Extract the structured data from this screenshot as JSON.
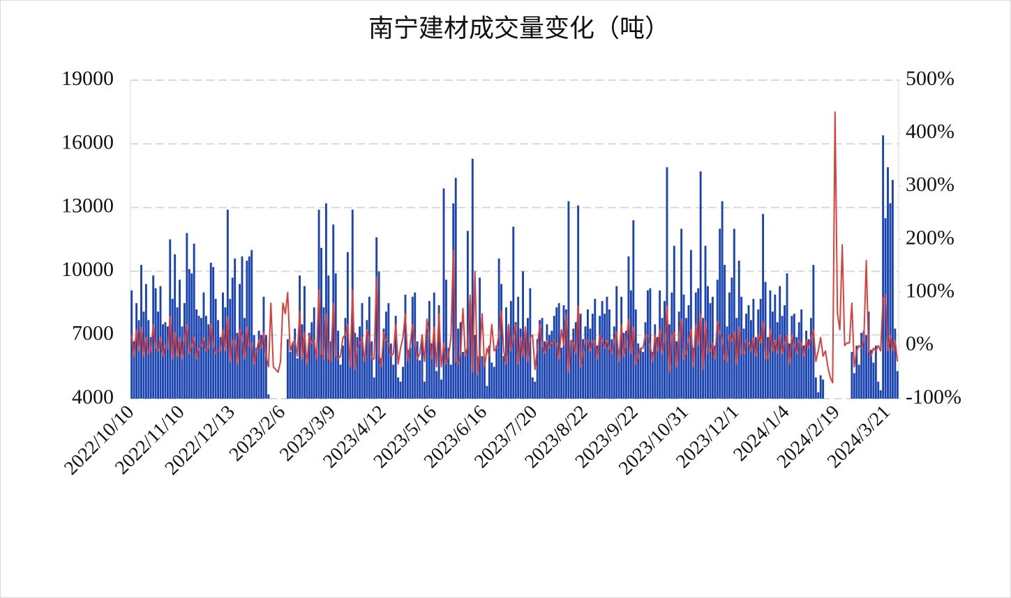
{
  "chart_data": {
    "type": "bar-line",
    "title": "南宁建材成交量变化（吨）",
    "categories": [
      "2022/10/10",
      null,
      null,
      null,
      null,
      null,
      null,
      null,
      null,
      null,
      null,
      null,
      null,
      null,
      null,
      null,
      null,
      null,
      null,
      null,
      null,
      "2022/11/10",
      null,
      null,
      null,
      null,
      null,
      null,
      null,
      null,
      null,
      null,
      null,
      null,
      null,
      null,
      null,
      null,
      null,
      null,
      null,
      null,
      "2022/12/13",
      null,
      null,
      null,
      null,
      null,
      null,
      null,
      null,
      null,
      null,
      null,
      null,
      null,
      null,
      null,
      null,
      null,
      null,
      null,
      null,
      "2023/2/6",
      null,
      null,
      null,
      null,
      null,
      null,
      null,
      null,
      null,
      null,
      null,
      null,
      null,
      null,
      null,
      null,
      null,
      null,
      null,
      null,
      "2023/3/9",
      null,
      null,
      null,
      null,
      null,
      null,
      null,
      null,
      null,
      null,
      null,
      null,
      null,
      null,
      null,
      null,
      null,
      null,
      null,
      null,
      "2023/4/12",
      null,
      null,
      null,
      null,
      null,
      null,
      null,
      null,
      null,
      null,
      null,
      null,
      null,
      null,
      null,
      null,
      null,
      null,
      null,
      null,
      "2023/5/16",
      null,
      null,
      null,
      null,
      null,
      null,
      null,
      null,
      null,
      null,
      null,
      null,
      null,
      null,
      null,
      null,
      null,
      null,
      null,
      null,
      "2023/6/16",
      null,
      null,
      null,
      null,
      null,
      null,
      null,
      null,
      null,
      null,
      null,
      null,
      null,
      null,
      null,
      null,
      null,
      null,
      null,
      null,
      "2023/7/20",
      null,
      null,
      null,
      null,
      null,
      null,
      null,
      null,
      null,
      null,
      null,
      null,
      null,
      null,
      null,
      null,
      null,
      null,
      null,
      null,
      "2023/8/22",
      null,
      null,
      null,
      null,
      null,
      null,
      null,
      null,
      null,
      null,
      null,
      null,
      null,
      null,
      null,
      null,
      null,
      null,
      null,
      null,
      "2023/9/22",
      null,
      null,
      null,
      null,
      null,
      null,
      null,
      null,
      null,
      null,
      null,
      null,
      null,
      null,
      null,
      null,
      null,
      null,
      null,
      null,
      "2023/10/31",
      null,
      null,
      null,
      null,
      null,
      null,
      null,
      null,
      null,
      null,
      null,
      null,
      null,
      null,
      null,
      null,
      null,
      null,
      null,
      null,
      "2023/12/1",
      null,
      null,
      null,
      null,
      null,
      null,
      null,
      null,
      null,
      null,
      null,
      null,
      null,
      null,
      null,
      null,
      null,
      null,
      null,
      null,
      "2024/1/4",
      null,
      null,
      null,
      null,
      null,
      null,
      null,
      null,
      null,
      null,
      null,
      null,
      null,
      null,
      null,
      null,
      null,
      null,
      null,
      null,
      "2024/2/19",
      null,
      null,
      null,
      null,
      null,
      null,
      null,
      null,
      null,
      null,
      null,
      null,
      null,
      null,
      null,
      null,
      null,
      null,
      null,
      null,
      "2024/3/21",
      null,
      null,
      null,
      null
    ],
    "series": [
      {
        "type": "bar",
        "color": "#1a44b0",
        "values": [
          9100,
          6700,
          8500,
          7700,
          10300,
          8100,
          9400,
          7700,
          6900,
          9800,
          9200,
          8100,
          9300,
          7500,
          7600,
          7400,
          11500,
          8700,
          10800,
          8300,
          9600,
          7400,
          8500,
          11800,
          10100,
          9900,
          11300,
          8200,
          7900,
          7800,
          9000,
          7900,
          7500,
          10400,
          10200,
          8700,
          7700,
          6900,
          9000,
          8300,
          12900,
          8700,
          9700,
          10600,
          7100,
          9400,
          10700,
          7800,
          10500,
          10700,
          11000,
          7000,
          6400,
          7200,
          7000,
          8800,
          7000,
          4200,
          3500,
          3500,
          3500,
          3500,
          3500,
          3500,
          3500,
          6800,
          6200,
          6600,
          7300,
          5900,
          9800,
          7500,
          9300,
          6000,
          7100,
          7600,
          8300,
          6200,
          12900,
          11100,
          8300,
          13200,
          9800,
          6700,
          12200,
          9900,
          7200,
          5600,
          6500,
          7800,
          10900,
          6200,
          12900,
          7100,
          6900,
          7400,
          8500,
          6000,
          7700,
          8800,
          6700,
          5000,
          11600,
          10000,
          5900,
          7300,
          8100,
          8500,
          6600,
          5600,
          7900,
          5000,
          4800,
          5500,
          8900,
          6300,
          6400,
          8800,
          9000,
          6700,
          5800,
          6900,
          4800,
          7300,
          8600,
          6600,
          9000,
          5300,
          8400,
          4900,
          13900,
          9600,
          6400,
          5600,
          13200,
          14400,
          7300,
          7600,
          6200,
          6300,
          11900,
          8500,
          15300,
          7000,
          6000,
          9700,
          6000,
          5900,
          4600,
          6500,
          5700,
          5500,
          6500,
          10600,
          9400,
          6000,
          8300,
          7400,
          8600,
          12100,
          7600,
          8800,
          7300,
          10000,
          6900,
          7800,
          9200,
          5000,
          4800,
          6800,
          7700,
          7800,
          6700,
          7500,
          7000,
          7200,
          7900,
          8300,
          8500,
          6400,
          8400,
          8200,
          13300,
          6700,
          7300,
          7600,
          13100,
          8000,
          6800,
          7400,
          8200,
          7300,
          8000,
          8700,
          6500,
          7900,
          8600,
          8000,
          8800,
          8200,
          6800,
          7400,
          9300,
          6300,
          8800,
          7100,
          7200,
          10700,
          9100,
          12400,
          8200,
          6600,
          6400,
          6200,
          7600,
          9100,
          9200,
          6200,
          7500,
          6900,
          9100,
          7800,
          8600,
          14900,
          7500,
          9000,
          11200,
          6700,
          8100,
          12000,
          8900,
          7800,
          8400,
          11000,
          6400,
          9000,
          9200,
          14700,
          7800,
          11200,
          9300,
          8500,
          8800,
          6500,
          9600,
          12000,
          13300,
          10300,
          7400,
          9000,
          9700,
          12000,
          7800,
          10500,
          8800,
          7300,
          8000,
          8400,
          7700,
          8700,
          6900,
          8200,
          8700,
          12700,
          9500,
          6900,
          9100,
          8100,
          8900,
          7600,
          9300,
          7900,
          8400,
          9900,
          6600,
          7900,
          8000,
          6900,
          7600,
          8200,
          6500,
          7200,
          6800,
          7800,
          10300,
          5000,
          4300,
          5100,
          4900,
          3500,
          3500,
          3500,
          3500,
          3500,
          3500,
          3500,
          3500,
          3500,
          3500,
          3500,
          6200,
          5200,
          6500,
          5600,
          7100,
          7200,
          7000,
          8100,
          6300,
          5700,
          6500,
          4800,
          4400,
          16400,
          12500,
          14900,
          13200,
          14300,
          7300,
          5300
        ]
      },
      {
        "type": "line",
        "axis": "y2",
        "color": "#d9403a",
        "values": [
          20,
          -20,
          30,
          -10,
          35,
          -20,
          15,
          -15,
          -10,
          40,
          -5,
          -10,
          15,
          -20,
          0,
          -5,
          55,
          -25,
          25,
          -20,
          15,
          -25,
          15,
          40,
          -15,
          0,
          15,
          -25,
          -5,
          0,
          15,
          -10,
          -5,
          40,
          0,
          -15,
          -10,
          -10,
          30,
          -10,
          55,
          -30,
          10,
          10,
          -35,
          30,
          15,
          -25,
          35,
          0,
          5,
          -35,
          -10,
          10,
          -5,
          25,
          -20,
          -40,
          80,
          -40,
          -45,
          -50,
          -30,
          80,
          60,
          100,
          -10,
          5,
          10,
          -20,
          65,
          -25,
          25,
          -35,
          20,
          5,
          10,
          -25,
          105,
          -15,
          -25,
          60,
          -25,
          -30,
          80,
          -20,
          -25,
          -20,
          15,
          20,
          40,
          -40,
          105,
          -45,
          -5,
          5,
          15,
          -30,
          30,
          15,
          -25,
          -25,
          130,
          -15,
          -40,
          25,
          10,
          5,
          -20,
          -15,
          40,
          -35,
          -5,
          15,
          60,
          -30,
          0,
          40,
          5,
          -25,
          -15,
          20,
          -30,
          50,
          20,
          -25,
          35,
          -40,
          60,
          -40,
          5,
          -35,
          -20,
          15,
          180,
          -30,
          -35,
          -15,
          70,
          -20,
          0,
          95,
          -50,
          140,
          -55,
          -15,
          60,
          -40,
          -5,
          -20,
          40,
          -10,
          -5,
          20,
          65,
          -10,
          -35,
          40,
          -10,
          15,
          40,
          -35,
          15,
          -20,
          35,
          -30,
          15,
          20,
          -45,
          -5,
          40,
          0,
          -15,
          10,
          -5,
          5,
          10,
          5,
          -25,
          30,
          0,
          60,
          -50,
          10,
          5,
          -15,
          75,
          -40,
          -15,
          10,
          10,
          -10,
          10,
          10,
          -25,
          20,
          10,
          -5,
          10,
          -5,
          -15,
          10,
          25,
          -30,
          40,
          -20,
          0,
          50,
          -15,
          35,
          -35,
          -20,
          -5,
          -5,
          20,
          20,
          0,
          -30,
          20,
          -10,
          30,
          -15,
          10,
          75,
          -50,
          20,
          25,
          -40,
          20,
          50,
          -25,
          -15,
          10,
          30,
          -40,
          40,
          0,
          60,
          -45,
          45,
          -15,
          -10,
          5,
          -25,
          45,
          25,
          10,
          -25,
          -30,
          20,
          10,
          25,
          -35,
          35,
          -15,
          -15,
          10,
          5,
          -10,
          15,
          -20,
          20,
          5,
          45,
          -25,
          -25,
          30,
          -10,
          10,
          -15,
          20,
          -15,
          5,
          20,
          -35,
          20,
          0,
          -15,
          10,
          5,
          -20,
          10,
          -5,
          15,
          30,
          -30,
          -10,
          15,
          -20,
          -10,
          -40,
          -60,
          -70,
          440,
          60,
          30,
          190,
          0,
          5,
          5,
          80,
          -40,
          -10,
          0,
          -5,
          10,
          160,
          -10,
          -20,
          -5,
          -10,
          0,
          -10,
          90,
          95,
          -10,
          20,
          -10,
          10,
          -30
        ]
      }
    ],
    "ylim": [
      4000,
      19000
    ],
    "yticks": [
      4000,
      7000,
      10000,
      13000,
      16000,
      19000
    ],
    "y2lim": [
      -100,
      500
    ],
    "y2ticks": [
      {
        "value": -100,
        "label": "-100%"
      },
      {
        "value": 0,
        "label": "0%"
      },
      {
        "value": 100,
        "label": "100%"
      },
      {
        "value": 200,
        "label": "200%"
      },
      {
        "value": 300,
        "label": "300%"
      },
      {
        "value": 400,
        "label": "400%"
      },
      {
        "value": 500,
        "label": "500%"
      }
    ],
    "grid": true
  }
}
